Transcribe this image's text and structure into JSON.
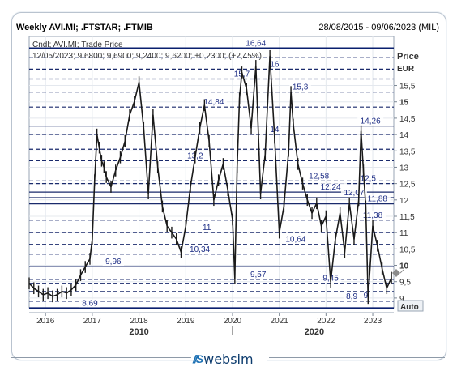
{
  "header": {
    "title": "Weekly AVI.MI; .FTSTAR; .FTMIB",
    "date_range": "28/08/2015 - 09/06/2023 (MIL)"
  },
  "legend": {
    "line1": "Cndl; AVI.MI; Trade Price",
    "line2": "12/05/2023; 9,6800; 9,6900; 9,2400; 9,6200; +0,2300; (+2,45%)"
  },
  "axis": {
    "right_title": "Price",
    "right_unit": "EUR",
    "auto_label": "Auto"
  },
  "brand": {
    "name": "websim"
  },
  "chart_data": {
    "type": "line",
    "title": "Weekly AVI.MI; .FTSTAR; .FTMIB",
    "ylabel": "Price EUR",
    "ylim": [
      8.7,
      17.0
    ],
    "xlim": [
      2015.65,
      2023.45
    ],
    "y_ticks": [
      {
        "value": 9,
        "label": "9",
        "bold": false
      },
      {
        "value": 9.5,
        "label": "9,5",
        "bold": false
      },
      {
        "value": 10,
        "label": "10",
        "bold": true
      },
      {
        "value": 10.5,
        "label": "10,5",
        "bold": false
      },
      {
        "value": 11,
        "label": "11",
        "bold": false
      },
      {
        "value": 11.5,
        "label": "11,5",
        "bold": false
      },
      {
        "value": 12,
        "label": "12",
        "bold": false
      },
      {
        "value": 12.5,
        "label": "12,5",
        "bold": false
      },
      {
        "value": 13,
        "label": "13",
        "bold": false
      },
      {
        "value": 13.5,
        "label": "13,5",
        "bold": false
      },
      {
        "value": 14,
        "label": "14",
        "bold": false
      },
      {
        "value": 14.5,
        "label": "14,5",
        "bold": false
      },
      {
        "value": 15,
        "label": "15",
        "bold": true
      },
      {
        "value": 15.5,
        "label": "15,5",
        "bold": false
      }
    ],
    "x_ticks": [
      {
        "value": 2016.0,
        "label": "2016"
      },
      {
        "value": 2017.0,
        "label": "2017"
      },
      {
        "value": 2018.0,
        "label": "2018"
      },
      {
        "value": 2019.0,
        "label": "2019"
      },
      {
        "value": 2020.0,
        "label": "2020"
      },
      {
        "value": 2021.0,
        "label": "2021"
      },
      {
        "value": 2022.0,
        "label": "2022"
      },
      {
        "value": 2023.0,
        "label": "2023"
      }
    ],
    "decade_labels": [
      {
        "value": 2018.0,
        "label": "2010"
      },
      {
        "value": 2021.75,
        "label": "2020"
      }
    ],
    "decade_marker_x": 2020.0,
    "levels": [
      {
        "value": 16.64,
        "label": "16,64",
        "label_x": 2020.5,
        "style": "solid",
        "color": "#0a1f6e"
      },
      {
        "value": 16.35,
        "label": "",
        "label_x": 2019.0,
        "style": "dashed",
        "color": "#1a2a6c"
      },
      {
        "value": 16.0,
        "label": "16",
        "label_x": 2020.9,
        "style": "dashed",
        "color": "#1a2a6c"
      },
      {
        "value": 15.7,
        "label": "15,7",
        "label_x": 2020.2,
        "style": "dashed",
        "color": "#1a2a6c"
      },
      {
        "value": 15.3,
        "label": "15,3",
        "label_x": 2021.45,
        "style": "dashed",
        "color": "#1a2a6c"
      },
      {
        "value": 14.84,
        "label": "14,84",
        "label_x": 2019.6,
        "style": "dashed",
        "color": "#1a2a6c"
      },
      {
        "value": 14.26,
        "label": "14,26",
        "label_x": 2022.95,
        "style": "solid",
        "color": "#1a2a6c"
      },
      {
        "value": 14.0,
        "label": "14",
        "label_x": 2020.9,
        "style": "dashed",
        "color": "#1a2a6c"
      },
      {
        "value": 13.55,
        "label": "",
        "label_x": 2019.0,
        "style": "dashed",
        "color": "#1a2a6c"
      },
      {
        "value": 13.2,
        "label": "13,2",
        "label_x": 2019.2,
        "style": "dashed",
        "color": "#1a2a6c"
      },
      {
        "value": 12.58,
        "label": "12,58",
        "label_x": 2021.85,
        "style": "dashed",
        "color": "#1a2a6c"
      },
      {
        "value": 12.5,
        "label": "12,5",
        "label_x": 2022.9,
        "style": "dashed",
        "color": "#1a2a6c"
      },
      {
        "value": 12.24,
        "label": "12,24",
        "label_x": 2022.1,
        "style": "solid",
        "color": "#1a2a6c"
      },
      {
        "value": 12.07,
        "label": "12,07",
        "label_x": 2022.6,
        "style": "solid",
        "color": "#1a2a6c"
      },
      {
        "value": 11.88,
        "label": "11,88",
        "label_x": 2023.1,
        "style": "solid",
        "color": "#1a2a6c"
      },
      {
        "value": 11.38,
        "label": "11,38",
        "label_x": 2023.0,
        "style": "dashed",
        "color": "#1a2a6c"
      },
      {
        "value": 11.0,
        "label": "11",
        "label_x": 2019.45,
        "style": "dashed",
        "color": "#1a2a6c"
      },
      {
        "value": 10.64,
        "label": "10,64",
        "label_x": 2021.35,
        "style": "dashed",
        "color": "#1a2a6c"
      },
      {
        "value": 10.34,
        "label": "10,34",
        "label_x": 2019.3,
        "style": "dashed",
        "color": "#1a2a6c"
      },
      {
        "value": 9.96,
        "label": "9,96",
        "label_x": 2017.45,
        "style": "solid",
        "color": "#1a2a6c"
      },
      {
        "value": 9.57,
        "label": "9,57",
        "label_x": 2020.55,
        "style": "dashed",
        "color": "#1a2a6c"
      },
      {
        "value": 9.45,
        "label": "9,45",
        "label_x": 2022.1,
        "style": "dashed",
        "color": "#1a2a6c"
      },
      {
        "value": 9.2,
        "label": "",
        "label_x": 2019.0,
        "style": "dashed",
        "color": "#1a2a6c"
      },
      {
        "value": 8.9,
        "label": "8,9",
        "label_x": 2022.55,
        "style": "dashed",
        "color": "#1a2a6c"
      },
      {
        "value": 8.92,
        "label": "9",
        "label_x": 2022.85,
        "style": "none",
        "color": "#1a2a6c"
      },
      {
        "value": 8.69,
        "label": "8,69",
        "label_x": 2016.95,
        "style": "solid",
        "color": "#0a1f6e"
      }
    ],
    "series": [
      {
        "name": "AVI.MI",
        "color": "#1a1a1a",
        "x": [
          2015.65,
          2015.75,
          2015.85,
          2015.95,
          2016.05,
          2016.15,
          2016.25,
          2016.35,
          2016.45,
          2016.55,
          2016.65,
          2016.75,
          2016.85,
          2016.95,
          2017.0,
          2017.05,
          2017.1,
          2017.15,
          2017.2,
          2017.25,
          2017.3,
          2017.4,
          2017.5,
          2017.6,
          2017.7,
          2017.8,
          2017.9,
          2018.0,
          2018.1,
          2018.2,
          2018.3,
          2018.4,
          2018.5,
          2018.6,
          2018.7,
          2018.8,
          2018.9,
          2019.0,
          2019.1,
          2019.2,
          2019.3,
          2019.4,
          2019.5,
          2019.6,
          2019.7,
          2019.8,
          2019.9,
          2020.0,
          2020.05,
          2020.1,
          2020.15,
          2020.2,
          2020.3,
          2020.4,
          2020.5,
          2020.6,
          2020.7,
          2020.8,
          2020.9,
          2021.0,
          2021.1,
          2021.2,
          2021.25,
          2021.3,
          2021.4,
          2021.5,
          2021.6,
          2021.7,
          2021.8,
          2021.9,
          2022.0,
          2022.1,
          2022.2,
          2022.3,
          2022.4,
          2022.5,
          2022.6,
          2022.7,
          2022.75,
          2022.8,
          2022.85,
          2022.9,
          2023.0,
          2023.1,
          2023.2,
          2023.3,
          2023.4
        ],
        "values": [
          9.45,
          9.3,
          9.2,
          9.1,
          9.15,
          9.05,
          9.1,
          9.2,
          9.15,
          9.25,
          9.4,
          9.7,
          9.95,
          10.2,
          10.8,
          12.6,
          14.0,
          13.6,
          13.2,
          13.0,
          12.7,
          12.4,
          12.9,
          13.3,
          13.8,
          14.6,
          15.0,
          15.6,
          14.2,
          12.2,
          14.6,
          13.0,
          11.8,
          11.2,
          11.0,
          10.8,
          10.4,
          11.2,
          12.4,
          13.3,
          14.2,
          14.9,
          13.8,
          12.0,
          12.6,
          13.1,
          12.3,
          11.4,
          9.6,
          13.0,
          15.1,
          15.9,
          15.4,
          14.2,
          16.1,
          12.2,
          13.4,
          16.4,
          13.9,
          11.0,
          11.8,
          13.5,
          15.3,
          14.3,
          13.1,
          12.5,
          12.0,
          11.6,
          11.9,
          11.2,
          11.5,
          9.5,
          10.8,
          11.6,
          10.4,
          11.9,
          10.8,
          12.0,
          14.1,
          12.9,
          11.8,
          9.0,
          11.2,
          10.6,
          9.9,
          9.3,
          9.62
        ]
      }
    ]
  }
}
